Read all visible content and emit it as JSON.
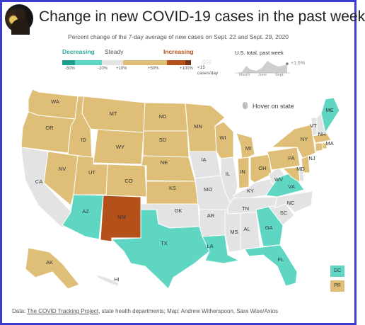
{
  "header": {
    "title": "Change in new COVID-19 cases in the past week",
    "subtitle": "Percent change of the 7-day average of new cases on Sept. 22 and Sept. 29, 2020"
  },
  "legend": {
    "decreasing_label": "Decreasing",
    "steady_label": "Steady",
    "increasing_label": "Increasing",
    "ticks": [
      "-50%",
      "-10%",
      "+10%",
      "+50%",
      "+100%"
    ],
    "fewer_cases_label": "<15 cases/day",
    "colors": {
      "decreasing_strong": "#1b9e8f",
      "decreasing": "#5fd6c1",
      "steady": "#e3e3e3",
      "increasing": "#dfbf78",
      "increasing_strong": "#b4511a",
      "increasing_max": "#7a3312"
    }
  },
  "us_total": {
    "title": "U.S. total, past week",
    "change": "+1.6%",
    "months": [
      "March",
      "June",
      "Sept."
    ]
  },
  "hover_hint": "Hover on state",
  "states": {
    "WA": "increasing",
    "OR": "increasing",
    "CA": "steady",
    "ID": "increasing",
    "NV": "increasing",
    "UT": "increasing",
    "AZ": "decreasing",
    "MT": "increasing",
    "WY": "increasing",
    "CO": "increasing",
    "NM": "increasing_strong",
    "ND": "increasing",
    "SD": "increasing",
    "NE": "increasing",
    "KS": "increasing",
    "OK": "steady",
    "TX": "decreasing",
    "MN": "increasing",
    "IA": "steady",
    "MO": "steady",
    "AR": "steady",
    "LA": "decreasing",
    "WI": "increasing",
    "IL": "steady",
    "MS": "steady",
    "AL": "steady",
    "MI": "increasing",
    "IN": "increasing",
    "OH": "increasing",
    "KY": "steady",
    "TN": "steady",
    "GA": "decreasing",
    "FL": "decreasing",
    "SC": "steady",
    "NC": "steady",
    "WV": "steady",
    "VA": "decreasing",
    "PA": "increasing",
    "NY": "increasing",
    "VT": "steady",
    "NH": "steady",
    "ME": "decreasing",
    "MA": "increasing",
    "CT": "increasing",
    "RI": "increasing",
    "NJ": "increasing",
    "DE": "steady",
    "MD": "increasing",
    "AK": "increasing",
    "HI": "steady",
    "DC": "decreasing",
    "PR": "increasing"
  },
  "state_labels": [
    "WA",
    "OR",
    "CA",
    "ID",
    "NV",
    "UT",
    "AZ",
    "MT",
    "WY",
    "CO",
    "NM",
    "ND",
    "SD",
    "NE",
    "KS",
    "OK",
    "TX",
    "MN",
    "IA",
    "MO",
    "AR",
    "LA",
    "WI",
    "IL",
    "MS",
    "AL",
    "MI",
    "IN",
    "OH",
    "KY",
    "TN",
    "GA",
    "FL",
    "SC",
    "NC",
    "WV",
    "VA",
    "PA",
    "NY",
    "VT",
    "NH",
    "ME",
    "MA",
    "NJ",
    "MD",
    "AK",
    "HI",
    "DC",
    "PR"
  ],
  "footer": {
    "data_label": "Data: ",
    "source_link": "The COVID Tracking Project",
    "rest": ", state health departments; Map: Andrew Witherspoon, Sara Wise/Axios"
  }
}
